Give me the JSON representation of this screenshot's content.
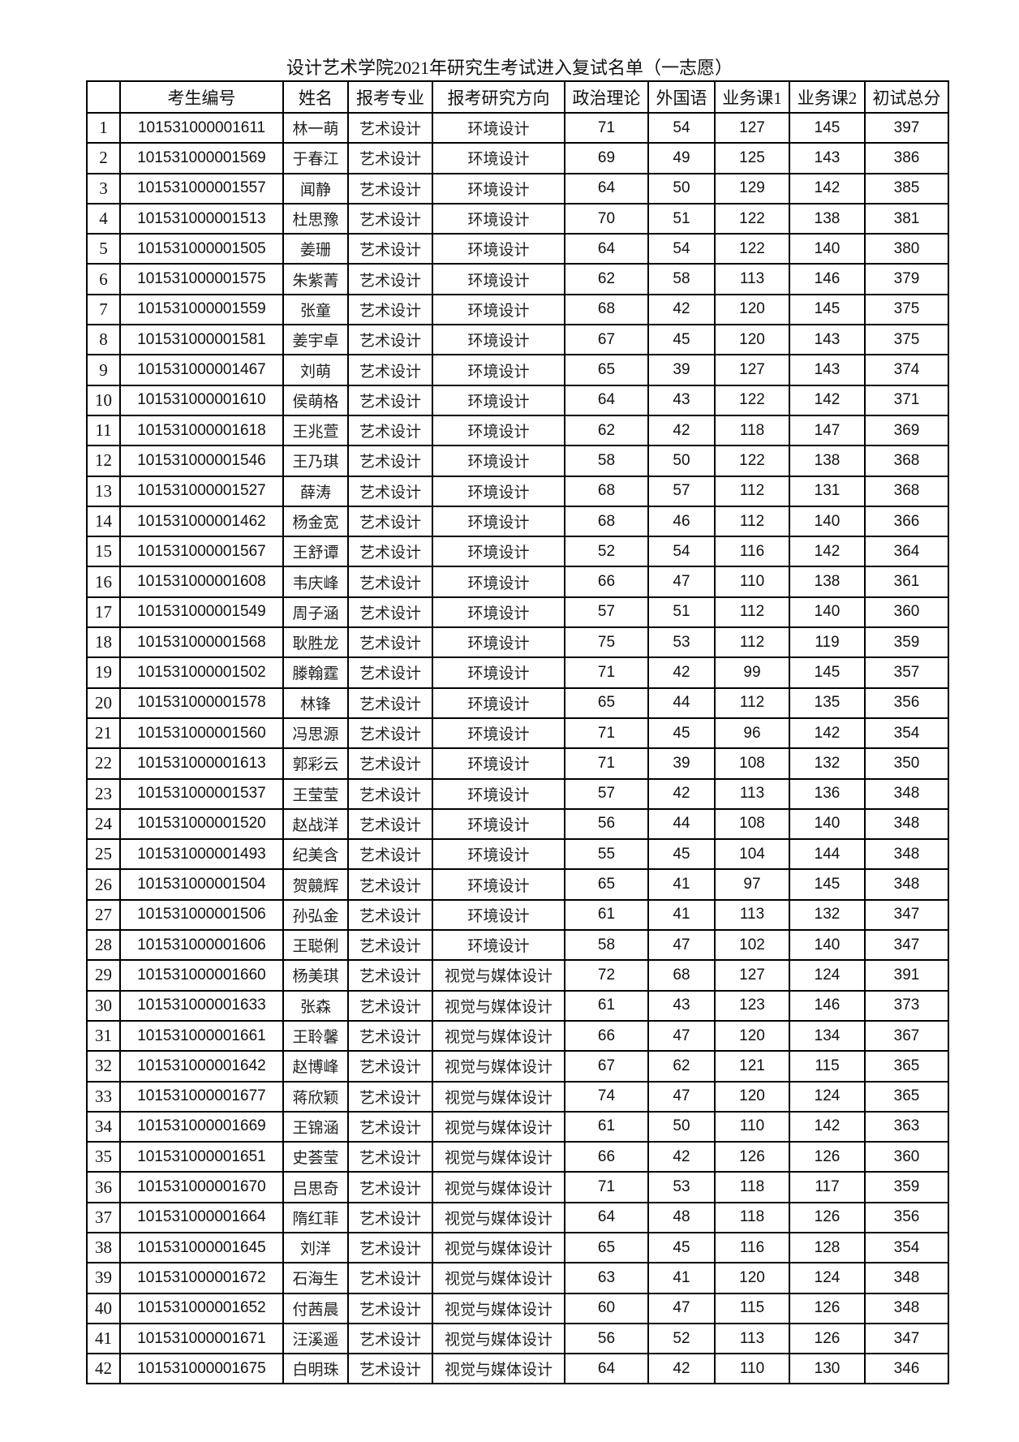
{
  "title": "设计艺术学院2021年研究生考试进入复试名单（一志愿）",
  "headers": [
    "",
    "考生编号",
    "姓名",
    "报考专业",
    "报考研究方向",
    "政治理论",
    "外国语",
    "业务课1",
    "业务课2",
    "初试总分"
  ],
  "rows": [
    [
      "1",
      "101531000001611",
      "林一萌",
      "艺术设计",
      "环境设计",
      "71",
      "54",
      "127",
      "145",
      "397"
    ],
    [
      "2",
      "101531000001569",
      "于春江",
      "艺术设计",
      "环境设计",
      "69",
      "49",
      "125",
      "143",
      "386"
    ],
    [
      "3",
      "101531000001557",
      "闻静",
      "艺术设计",
      "环境设计",
      "64",
      "50",
      "129",
      "142",
      "385"
    ],
    [
      "4",
      "101531000001513",
      "杜思豫",
      "艺术设计",
      "环境设计",
      "70",
      "51",
      "122",
      "138",
      "381"
    ],
    [
      "5",
      "101531000001505",
      "姜珊",
      "艺术设计",
      "环境设计",
      "64",
      "54",
      "122",
      "140",
      "380"
    ],
    [
      "6",
      "101531000001575",
      "朱紫菁",
      "艺术设计",
      "环境设计",
      "62",
      "58",
      "113",
      "146",
      "379"
    ],
    [
      "7",
      "101531000001559",
      "张童",
      "艺术设计",
      "环境设计",
      "68",
      "42",
      "120",
      "145",
      "375"
    ],
    [
      "8",
      "101531000001581",
      "姜宇卓",
      "艺术设计",
      "环境设计",
      "67",
      "45",
      "120",
      "143",
      "375"
    ],
    [
      "9",
      "101531000001467",
      "刘萌",
      "艺术设计",
      "环境设计",
      "65",
      "39",
      "127",
      "143",
      "374"
    ],
    [
      "10",
      "101531000001610",
      "侯萌格",
      "艺术设计",
      "环境设计",
      "64",
      "43",
      "122",
      "142",
      "371"
    ],
    [
      "11",
      "101531000001618",
      "王兆萱",
      "艺术设计",
      "环境设计",
      "62",
      "42",
      "118",
      "147",
      "369"
    ],
    [
      "12",
      "101531000001546",
      "王乃琪",
      "艺术设计",
      "环境设计",
      "58",
      "50",
      "122",
      "138",
      "368"
    ],
    [
      "13",
      "101531000001527",
      "薛涛",
      "艺术设计",
      "环境设计",
      "68",
      "57",
      "112",
      "131",
      "368"
    ],
    [
      "14",
      "101531000001462",
      "杨金宽",
      "艺术设计",
      "环境设计",
      "68",
      "46",
      "112",
      "140",
      "366"
    ],
    [
      "15",
      "101531000001567",
      "王舒谭",
      "艺术设计",
      "环境设计",
      "52",
      "54",
      "116",
      "142",
      "364"
    ],
    [
      "16",
      "101531000001608",
      "韦庆峰",
      "艺术设计",
      "环境设计",
      "66",
      "47",
      "110",
      "138",
      "361"
    ],
    [
      "17",
      "101531000001549",
      "周子涵",
      "艺术设计",
      "环境设计",
      "57",
      "51",
      "112",
      "140",
      "360"
    ],
    [
      "18",
      "101531000001568",
      "耿胜龙",
      "艺术设计",
      "环境设计",
      "75",
      "53",
      "112",
      "119",
      "359"
    ],
    [
      "19",
      "101531000001502",
      "滕翰霆",
      "艺术设计",
      "环境设计",
      "71",
      "42",
      "99",
      "145",
      "357"
    ],
    [
      "20",
      "101531000001578",
      "林锋",
      "艺术设计",
      "环境设计",
      "65",
      "44",
      "112",
      "135",
      "356"
    ],
    [
      "21",
      "101531000001560",
      "冯思源",
      "艺术设计",
      "环境设计",
      "71",
      "45",
      "96",
      "142",
      "354"
    ],
    [
      "22",
      "101531000001613",
      "郭彩云",
      "艺术设计",
      "环境设计",
      "71",
      "39",
      "108",
      "132",
      "350"
    ],
    [
      "23",
      "101531000001537",
      "王莹莹",
      "艺术设计",
      "环境设计",
      "57",
      "42",
      "113",
      "136",
      "348"
    ],
    [
      "24",
      "101531000001520",
      "赵战洋",
      "艺术设计",
      "环境设计",
      "56",
      "44",
      "108",
      "140",
      "348"
    ],
    [
      "25",
      "101531000001493",
      "纪美含",
      "艺术设计",
      "环境设计",
      "55",
      "45",
      "104",
      "144",
      "348"
    ],
    [
      "26",
      "101531000001504",
      "贺竸辉",
      "艺术设计",
      "环境设计",
      "65",
      "41",
      "97",
      "145",
      "348"
    ],
    [
      "27",
      "101531000001506",
      "孙弘金",
      "艺术设计",
      "环境设计",
      "61",
      "41",
      "113",
      "132",
      "347"
    ],
    [
      "28",
      "101531000001606",
      "王聪俐",
      "艺术设计",
      "环境设计",
      "58",
      "47",
      "102",
      "140",
      "347"
    ],
    [
      "29",
      "101531000001660",
      "杨美琪",
      "艺术设计",
      "视觉与媒体设计",
      "72",
      "68",
      "127",
      "124",
      "391"
    ],
    [
      "30",
      "101531000001633",
      "张森",
      "艺术设计",
      "视觉与媒体设计",
      "61",
      "43",
      "123",
      "146",
      "373"
    ],
    [
      "31",
      "101531000001661",
      "王聆馨",
      "艺术设计",
      "视觉与媒体设计",
      "66",
      "47",
      "120",
      "134",
      "367"
    ],
    [
      "32",
      "101531000001642",
      "赵博峰",
      "艺术设计",
      "视觉与媒体设计",
      "67",
      "62",
      "121",
      "115",
      "365"
    ],
    [
      "33",
      "101531000001677",
      "蒋欣颖",
      "艺术设计",
      "视觉与媒体设计",
      "74",
      "47",
      "120",
      "124",
      "365"
    ],
    [
      "34",
      "101531000001669",
      "王锦涵",
      "艺术设计",
      "视觉与媒体设计",
      "61",
      "50",
      "110",
      "142",
      "363"
    ],
    [
      "35",
      "101531000001651",
      "史荟莹",
      "艺术设计",
      "视觉与媒体设计",
      "66",
      "42",
      "126",
      "126",
      "360"
    ],
    [
      "36",
      "101531000001670",
      "吕思奇",
      "艺术设计",
      "视觉与媒体设计",
      "71",
      "53",
      "118",
      "117",
      "359"
    ],
    [
      "37",
      "101531000001664",
      "隋红菲",
      "艺术设计",
      "视觉与媒体设计",
      "64",
      "48",
      "118",
      "126",
      "356"
    ],
    [
      "38",
      "101531000001645",
      "刘洋",
      "艺术设计",
      "视觉与媒体设计",
      "65",
      "45",
      "116",
      "128",
      "354"
    ],
    [
      "39",
      "101531000001672",
      "石海生",
      "艺术设计",
      "视觉与媒体设计",
      "63",
      "41",
      "120",
      "124",
      "348"
    ],
    [
      "40",
      "101531000001652",
      "付茜晨",
      "艺术设计",
      "视觉与媒体设计",
      "60",
      "47",
      "115",
      "126",
      "348"
    ],
    [
      "41",
      "101531000001671",
      "汪溪遥",
      "艺术设计",
      "视觉与媒体设计",
      "56",
      "52",
      "113",
      "126",
      "347"
    ],
    [
      "42",
      "101531000001675",
      "白明珠",
      "艺术设计",
      "视觉与媒体设计",
      "64",
      "42",
      "110",
      "130",
      "346"
    ]
  ]
}
